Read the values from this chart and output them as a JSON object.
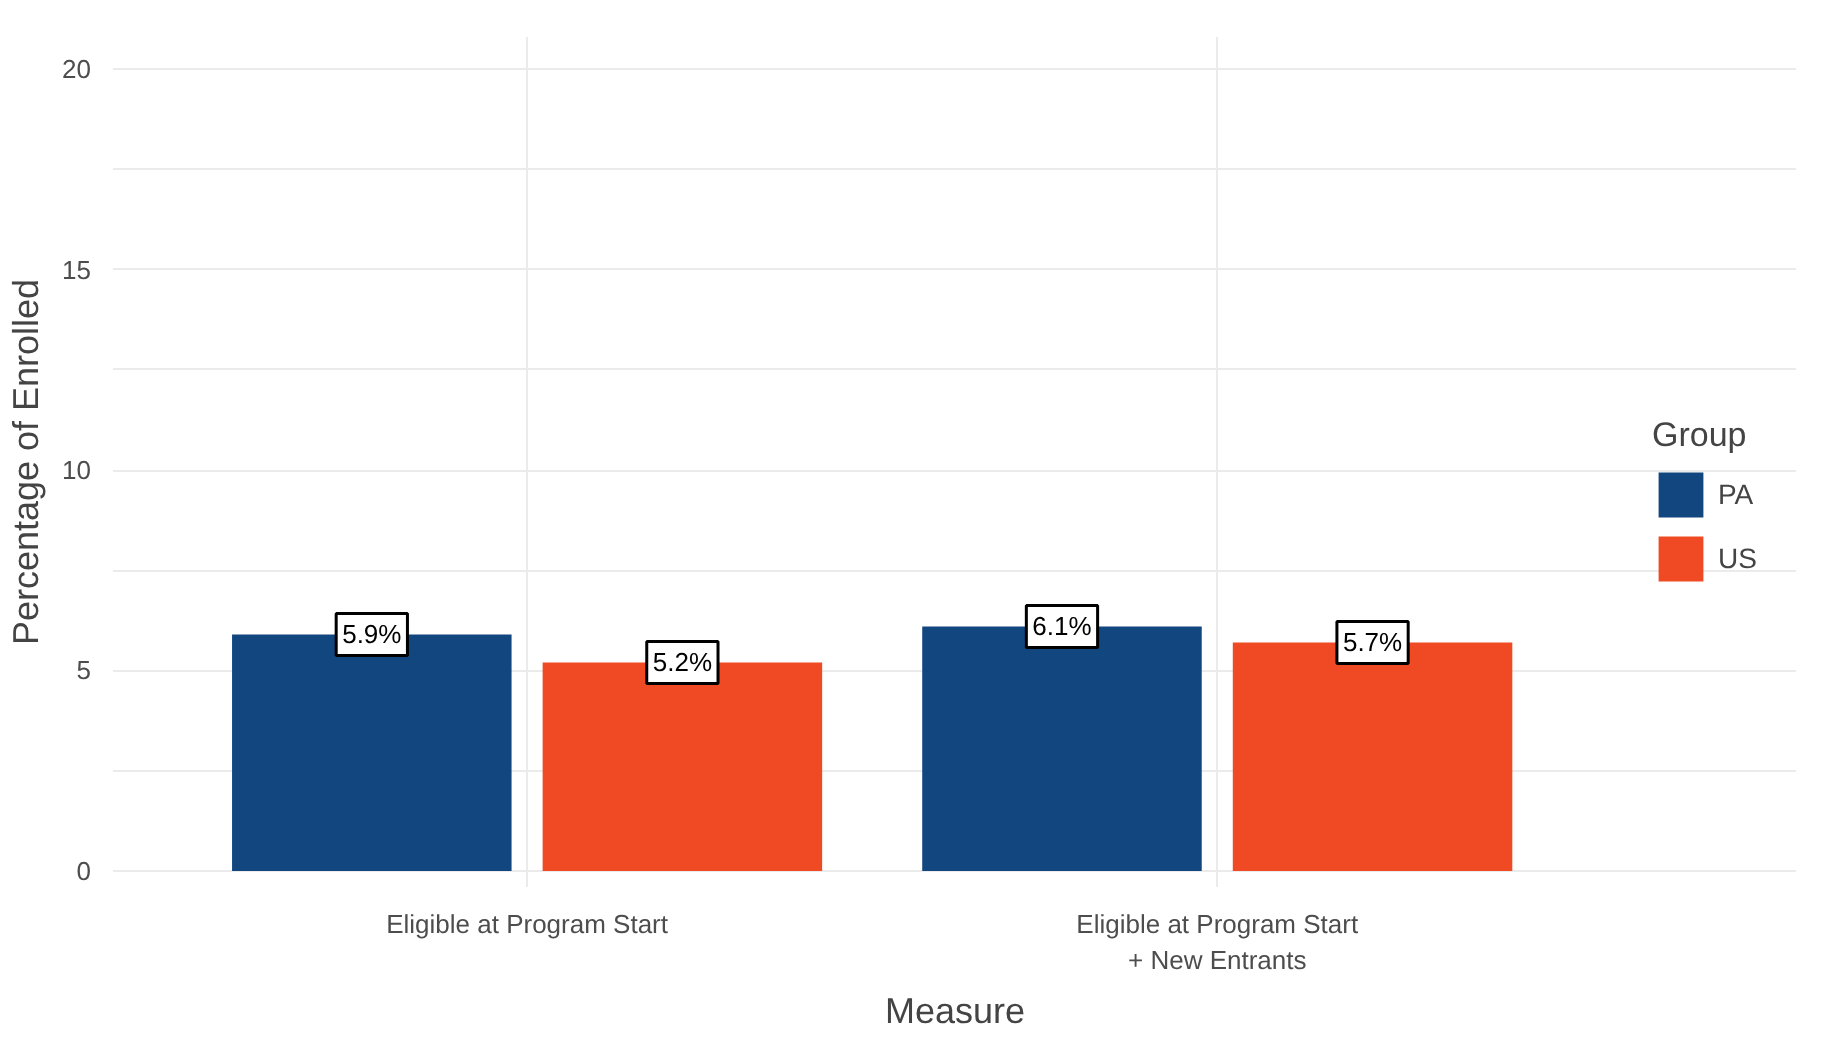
{
  "chart_data": {
    "type": "bar",
    "xlabel": "Measure",
    "ylabel": "Percentage of Enrolled",
    "legend_title": "Group",
    "categories": [
      "Eligible at Program Start",
      "Eligible at Program Start\n+ New Entrants"
    ],
    "series": [
      {
        "name": "PA",
        "color": "#12467f",
        "values": [
          5.9,
          6.1
        ],
        "value_labels": [
          "5.9%",
          "6.1%"
        ]
      },
      {
        "name": "US",
        "color": "#ef4a23",
        "values": [
          5.2,
          5.7
        ],
        "value_labels": [
          "5.2%",
          "5.7%"
        ]
      }
    ],
    "ylim": [
      -0.4,
      20.8
    ],
    "yticks": [
      0,
      {
        "value": 2.5,
        "label": null
      },
      5,
      {
        "value": 7.5,
        "label": null
      },
      10,
      {
        "value": 12.5,
        "label": null
      },
      15,
      {
        "value": 17.5,
        "label": null
      },
      20
    ],
    "grid": true,
    "legend": "right"
  }
}
